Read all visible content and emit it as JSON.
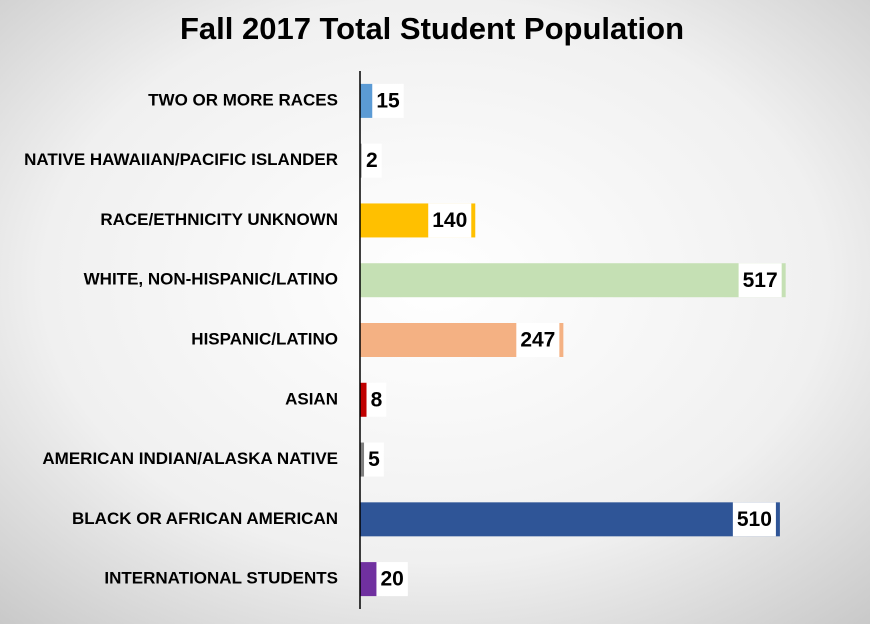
{
  "chart_data": {
    "type": "barh",
    "title": "Fall 2017 Total Student Population",
    "categories": [
      "TWO OR MORE RACES",
      "NATIVE HAWAIIAN/PACIFIC ISLANDER",
      "RACE/ETHNICITY UNKNOWN",
      "WHITE, NON-HISPANIC/LATINO",
      "HISPANIC/LATINO",
      "ASIAN",
      "AMERICAN INDIAN/ALASKA NATIVE",
      "BLACK OR AFRICAN AMERICAN",
      "INTERNATIONAL STUDENTS"
    ],
    "values": [
      15,
      2,
      140,
      517,
      247,
      8,
      5,
      510,
      20
    ],
    "colors": [
      "#5b9bd5",
      "#a5a5a5",
      "#ffc000",
      "#c5e0b4",
      "#f4b183",
      "#c00000",
      "#7f7f7f",
      "#2f5597",
      "#7030a0"
    ],
    "xlim": [
      0,
      600
    ]
  }
}
